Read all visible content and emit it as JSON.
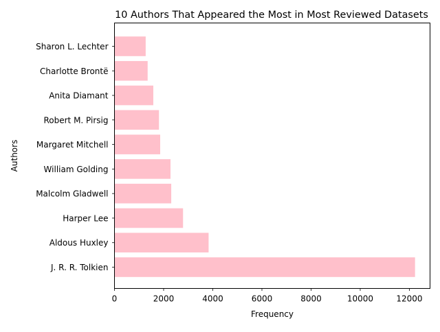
{
  "chart_data": {
    "type": "bar",
    "orientation": "horizontal",
    "title": "10 Authors That Appeared the Most in Most Reviewed Datasets",
    "xlabel": "Frequency",
    "ylabel": "Authors",
    "categories": [
      "J. R. R. Tolkien",
      "Aldous Huxley",
      "Harper Lee",
      "Malcolm Gladwell",
      "William Golding",
      "Margaret Mitchell",
      "Robert M. Pirsig",
      "Anita Diamant",
      "Charlotte Brontë",
      "Sharon L. Lechter"
    ],
    "values": [
      12230,
      3830,
      2790,
      2310,
      2280,
      1860,
      1810,
      1580,
      1350,
      1270
    ],
    "xlim": [
      0,
      12840
    ],
    "xticks": [
      0,
      2000,
      4000,
      6000,
      8000,
      10000,
      12000
    ],
    "xtick_labels": [
      "0",
      "2000",
      "4000",
      "6000",
      "8000",
      "10000",
      "12000"
    ],
    "grid": false,
    "legend": "none",
    "bar_color": "#ffc0cb"
  }
}
